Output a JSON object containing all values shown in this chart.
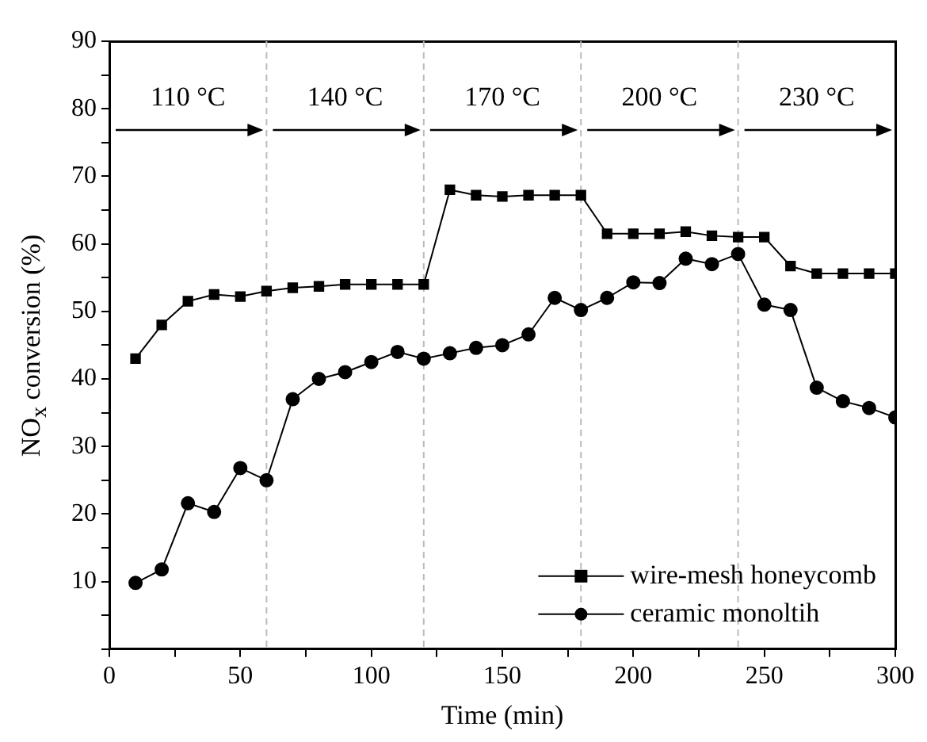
{
  "chart_data": {
    "type": "line",
    "xlabel": "Time (min)",
    "ylabel": "NO$_{x}$ conversion (%)",
    "x": [
      10,
      20,
      30,
      40,
      50,
      60,
      70,
      80,
      90,
      100,
      110,
      120,
      130,
      140,
      150,
      160,
      170,
      180,
      190,
      200,
      210,
      220,
      230,
      240,
      250,
      260,
      270,
      280,
      290,
      300
    ],
    "series": [
      {
        "name": "wire-mesh honeycomb",
        "color": "#000000",
        "marker": "square",
        "values": [
          43,
          48,
          51.5,
          52.5,
          52.2,
          53,
          53.5,
          53.7,
          54,
          54,
          54,
          54,
          68,
          67.2,
          67,
          67.2,
          67.2,
          67.2,
          61.5,
          61.5,
          61.5,
          61.8,
          61.2,
          61,
          61,
          56.7,
          55.6,
          55.6,
          55.6,
          55.6
        ]
      },
      {
        "name": "ceramic monoltih",
        "color": "#000000",
        "marker": "circle",
        "values": [
          9.8,
          11.8,
          21.6,
          20.3,
          26.8,
          25,
          37,
          40,
          41,
          42.5,
          44,
          43,
          43.8,
          44.6,
          45,
          46.6,
          52,
          50.2,
          52,
          54.3,
          54.2,
          57.8,
          57,
          58.5,
          51,
          50.2,
          38.7,
          36.7,
          35.7,
          34.3
        ]
      }
    ],
    "xlim": [
      0,
      300
    ],
    "xticks": [
      0,
      {
        "value": 25,
        "label": null
      },
      50,
      {
        "value": 75,
        "label": null
      },
      100,
      {
        "value": 125,
        "label": null
      },
      150,
      {
        "value": 175,
        "label": null
      },
      200,
      {
        "value": 225,
        "label": null
      },
      250,
      {
        "value": 275,
        "label": null
      },
      300
    ],
    "ylim": [
      0,
      90
    ],
    "yticks": [
      {
        "value": 0,
        "label": null
      },
      {
        "value": 5,
        "label": null
      },
      10,
      {
        "value": 15,
        "label": null
      },
      20,
      {
        "value": 25,
        "label": null
      },
      30,
      {
        "value": 35,
        "label": null
      },
      40,
      {
        "value": 45,
        "label": null
      },
      50,
      {
        "value": 55,
        "label": null
      },
      60,
      {
        "value": 65,
        "label": null
      },
      70,
      {
        "value": 75,
        "label": null
      },
      80,
      {
        "value": 85,
        "label": null
      },
      90
    ],
    "ref_lines": [
      {
        "axis": "x",
        "value": 60,
        "color": "#bbbbbb",
        "line_style": "dashed"
      },
      {
        "axis": "x",
        "value": 120,
        "color": "#bbbbbb",
        "line_style": "dashed"
      },
      {
        "axis": "x",
        "value": 180,
        "color": "#bbbbbb",
        "line_style": "dashed"
      },
      {
        "axis": "x",
        "value": 240,
        "color": "#bbbbbb",
        "line_style": "dashed"
      }
    ],
    "annotations": [
      "110 °C",
      "140 °C",
      "170 °C",
      "200 °C",
      "230 °C"
    ],
    "grid": false,
    "legend": "bottom right",
    "line_style": "solid"
  }
}
